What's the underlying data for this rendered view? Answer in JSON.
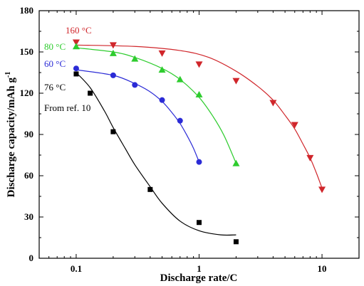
{
  "chart_data": {
    "type": "scatter",
    "xlabel": "Discharge rate/C",
    "ylabel": "Discharge capacity/mAh g",
    "ylabel_sup": "-1",
    "x_scale": "log",
    "xlim": [
      0.05,
      20
    ],
    "ylim": [
      0,
      180
    ],
    "x_ticks": [
      0.1,
      1,
      10
    ],
    "x_tick_labels": [
      "0.1",
      "1",
      "10"
    ],
    "y_ticks": [
      0,
      30,
      60,
      90,
      120,
      150,
      180
    ],
    "y_tick_labels": [
      "0",
      "30",
      "60",
      "90",
      "120",
      "150",
      "180"
    ],
    "grid": false,
    "series": [
      {
        "name": "160 °C",
        "color": "#d0262b",
        "marker": "triangle-down",
        "x": [
          0.1,
          0.2,
          0.5,
          1,
          2,
          4,
          6,
          8,
          10
        ],
        "y": [
          157,
          155,
          149,
          141,
          129,
          113,
          97,
          73,
          50
        ],
        "fit_x": [
          0.1,
          0.3,
          0.7,
          1.2,
          2,
          3,
          4,
          5,
          6,
          7,
          8,
          9,
          10
        ],
        "fit_y": [
          155,
          154,
          151,
          146,
          136,
          125,
          115,
          104,
          94,
          83,
          73,
          62,
          51
        ]
      },
      {
        "name": "80 °C",
        "color": "#2ecc2e",
        "marker": "triangle-up",
        "x": [
          0.1,
          0.2,
          0.3,
          0.5,
          0.7,
          1,
          2
        ],
        "y": [
          154,
          149,
          145,
          137,
          130,
          119,
          69
        ],
        "fit_x": [
          0.1,
          0.2,
          0.3,
          0.5,
          0.7,
          1,
          1.3,
          1.6,
          2
        ],
        "fit_y": [
          153,
          150,
          146,
          138,
          130,
          117,
          103,
          89,
          69
        ]
      },
      {
        "name": "60 °C",
        "color": "#2b2bd6",
        "marker": "circle",
        "x": [
          0.1,
          0.2,
          0.3,
          0.5,
          0.7,
          1
        ],
        "y": [
          138,
          133,
          126,
          115,
          100,
          70
        ],
        "fit_x": [
          0.1,
          0.2,
          0.3,
          0.4,
          0.5,
          0.6,
          0.7,
          0.8,
          0.9,
          1
        ],
        "fit_y": [
          137,
          133,
          127,
          121,
          114,
          106,
          98,
          89,
          80,
          70
        ]
      },
      {
        "name": "76 °C",
        "sub_label": "From ref. 10",
        "color": "#000000",
        "marker": "square",
        "x": [
          0.1,
          0.13,
          0.2,
          0.4,
          1,
          2
        ],
        "y": [
          134,
          120,
          92,
          50,
          26,
          12
        ],
        "fit_x": [
          0.1,
          0.13,
          0.17,
          0.2,
          0.25,
          0.3,
          0.4,
          0.5,
          0.7,
          1,
          1.5,
          2
        ],
        "fit_y": [
          135,
          124,
          107,
          95,
          80,
          68,
          52,
          40,
          27,
          20,
          17,
          17
        ]
      }
    ]
  }
}
